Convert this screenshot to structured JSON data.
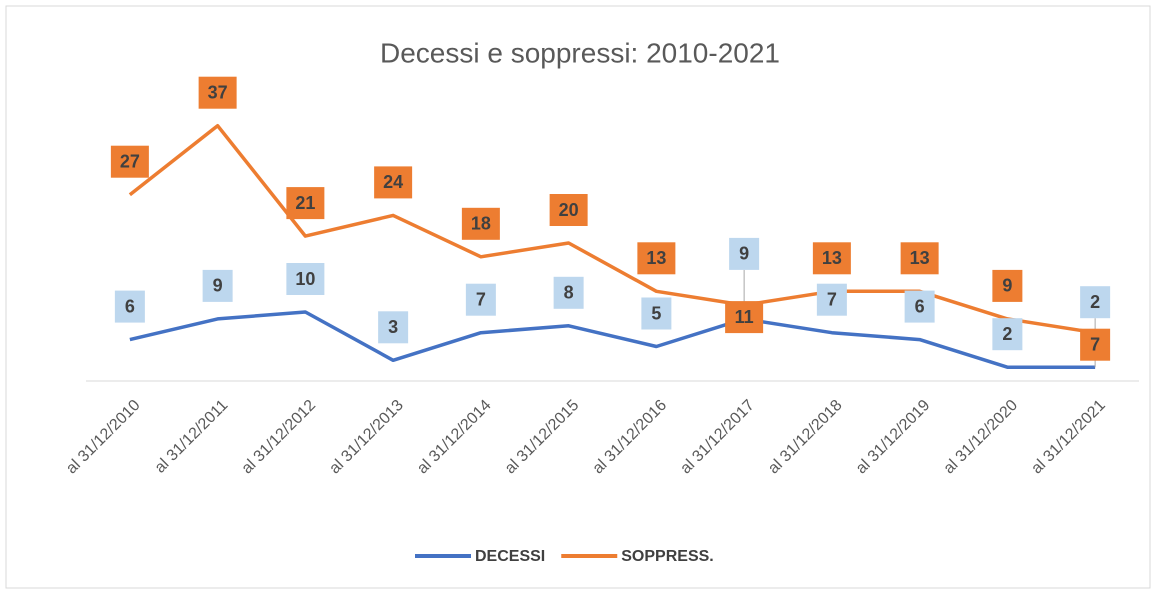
{
  "chart_data": {
    "type": "line",
    "title": "Decessi e soppressi: 2010-2021",
    "categories": [
      "al 31/12/2010",
      "al 31/12/2011",
      "al 31/12/2012",
      "al 31/12/2013",
      "al 31/12/2014",
      "al 31/12/2015",
      "al 31/12/2016",
      "al 31/12/2017",
      "al 31/12/2018",
      "al 31/12/2019",
      "al 31/12/2020",
      "al 31/12/2021"
    ],
    "series": [
      {
        "name": "DECESSI",
        "color": "#4472c4",
        "label_color": "#bdd7ee",
        "values": [
          6,
          9,
          10,
          3,
          7,
          8,
          5,
          9,
          7,
          6,
          2,
          2
        ]
      },
      {
        "name": "SOPPRESS.",
        "color": "#ed7d31",
        "label_color": "#ed7d31",
        "values": [
          27,
          37,
          21,
          24,
          18,
          20,
          13,
          11,
          13,
          13,
          9,
          7
        ]
      }
    ],
    "ylim": [
      0,
      40
    ],
    "legend": "bottom"
  }
}
